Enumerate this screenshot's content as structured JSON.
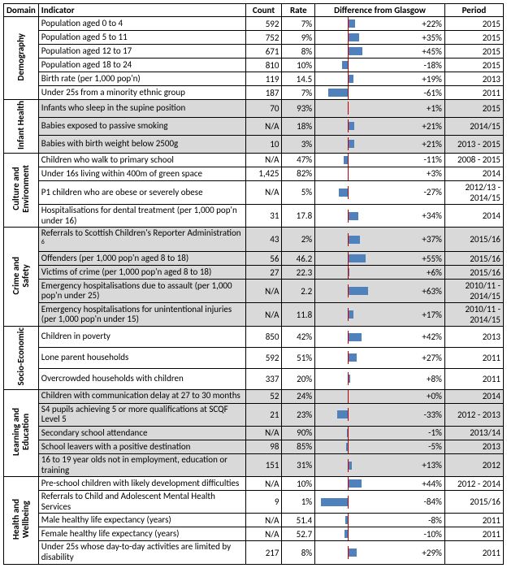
{
  "chart": {
    "min": -100,
    "max": 100,
    "bar_color": "#4f81bd",
    "zero_line_color": "#c00000"
  },
  "headers": {
    "domain": "Domain",
    "indicator": "Indicator",
    "count": "Count",
    "rate": "Rate",
    "diff": "Difference from Glasgow",
    "period": "Period"
  },
  "domains": [
    {
      "name": "Demography",
      "shaded": false,
      "rows": [
        {
          "indicator": "Population aged 0 to 4",
          "count": "592",
          "rate": "7%",
          "pct": 22,
          "pct_label": "+22%",
          "period": "2015"
        },
        {
          "indicator": "Population aged 5 to 11",
          "count": "752",
          "rate": "9%",
          "pct": 35,
          "pct_label": "+35%",
          "period": "2015"
        },
        {
          "indicator": "Population aged 12 to 17",
          "count": "671",
          "rate": "8%",
          "pct": 45,
          "pct_label": "+45%",
          "period": "2015"
        },
        {
          "indicator": "Population aged 18 to 24",
          "count": "810",
          "rate": "10%",
          "pct": -18,
          "pct_label": "-18%",
          "period": "2015"
        },
        {
          "indicator": "Birth rate (per 1,000 pop'n)",
          "count": "119",
          "rate": "14.5",
          "pct": 19,
          "pct_label": "+19%",
          "period": "2013"
        },
        {
          "indicator": "Under 25s from a minority ethnic group",
          "count": "187",
          "rate": "7%",
          "pct": -61,
          "pct_label": "-61%",
          "period": "2011"
        }
      ]
    },
    {
      "name": "Infant Health",
      "shaded": true,
      "rows": [
        {
          "indicator": "Infants who sleep in the supine position",
          "count": "70",
          "rate": "93%",
          "pct": 1,
          "pct_label": "+1%",
          "period": "2015"
        },
        {
          "indicator": "Babies exposed to passive smoking",
          "count": "N/A",
          "rate": "18%",
          "pct": 21,
          "pct_label": "+21%",
          "period": "2014/15"
        },
        {
          "indicator": "Babies with birth weight below 2500g",
          "count": "10",
          "rate": "3%",
          "pct": 21,
          "pct_label": "+21%",
          "period": "2013 - 2015"
        }
      ]
    },
    {
      "name": "Culture and Environment",
      "shaded": false,
      "rows": [
        {
          "indicator": "Children who walk to primary school",
          "count": "N/A",
          "rate": "47%",
          "pct": -11,
          "pct_label": "-11%",
          "period": "2008 - 2015"
        },
        {
          "indicator": "Under 16s living within 400m of green space",
          "count": "1,425",
          "rate": "82%",
          "pct": 3,
          "pct_label": "+3%",
          "period": "2014"
        },
        {
          "indicator": "P1 children who are obese or severely obese",
          "count": "N/A",
          "rate": "5%",
          "pct": -27,
          "pct_label": "-27%",
          "period": "2012/13 - 2014/15"
        },
        {
          "indicator": "Hospitalisations for dental treatment (per 1,000 pop'n under 16)",
          "count": "31",
          "rate": "17.8",
          "pct": 34,
          "pct_label": "+34%",
          "period": "2014"
        }
      ]
    },
    {
      "name": "Crime and Safety",
      "shaded": true,
      "rows": [
        {
          "indicator": "Referrals to Scottish Children's Reporter Administration",
          "sup": "6",
          "count": "43",
          "rate": "2%",
          "pct": 37,
          "pct_label": "+37%",
          "period": "2015/16"
        },
        {
          "indicator": "Offenders (per 1,000 pop'n aged 8 to 18)",
          "count": "56",
          "rate": "46.2",
          "pct": 55,
          "pct_label": "+55%",
          "period": "2015/16"
        },
        {
          "indicator": "Victims of crime (per 1,000 pop'n aged 8 to 18)",
          "count": "27",
          "rate": "22.3",
          "pct": 6,
          "pct_label": "+6%",
          "period": "2015/16"
        },
        {
          "indicator": "Emergency hospitalisations due to assault (per 1,000 pop'n under 25)",
          "count": "N/A",
          "rate": "2.2",
          "pct": 63,
          "pct_label": "+63%",
          "period": "2010/11 - 2014/15"
        },
        {
          "indicator": "Emergency hospitalisations for unintentional injuries (per 1,000 pop'n under 15)",
          "count": "N/A",
          "rate": "11.8",
          "pct": 17,
          "pct_label": "+17%",
          "period": "2010/11 - 2014/15"
        }
      ]
    },
    {
      "name": "Socio-Economic",
      "shaded": false,
      "rows": [
        {
          "indicator": "Children in poverty",
          "count": "850",
          "rate": "42%",
          "pct": 42,
          "pct_label": "+42%",
          "period": "2013"
        },
        {
          "indicator": "Lone parent households",
          "count": "592",
          "rate": "51%",
          "pct": 27,
          "pct_label": "+27%",
          "period": "2011"
        },
        {
          "indicator": "Overcrowded households with children",
          "count": "337",
          "rate": "20%",
          "pct": 8,
          "pct_label": "+8%",
          "period": "2011"
        }
      ]
    },
    {
      "name": "Learning and Education",
      "shaded": true,
      "rows": [
        {
          "indicator": "Children with communication delay at 27 to 30 months",
          "count": "52",
          "rate": "24%",
          "pct": 0,
          "pct_label": "+0%",
          "period": "2014"
        },
        {
          "indicator": "S4 pupils achieving 5 or more qualifications at SCQF Level 5",
          "count": "21",
          "rate": "23%",
          "pct": -33,
          "pct_label": "-33%",
          "period": "2012 - 2013"
        },
        {
          "indicator": "Secondary school attendance",
          "count": "N/A",
          "rate": "90%",
          "pct": -1,
          "pct_label": "-1%",
          "period": "2013/14"
        },
        {
          "indicator": "School leavers with a positive destination",
          "count": "98",
          "rate": "85%",
          "pct": -5,
          "pct_label": "-5%",
          "period": "2013"
        },
        {
          "indicator": "16 to 19 year olds not in employment, education or training",
          "count": "151",
          "rate": "31%",
          "pct": 13,
          "pct_label": "+13%",
          "period": "2012"
        }
      ]
    },
    {
      "name": "Health and Wellbeing",
      "shaded": false,
      "rows": [
        {
          "indicator": "Pre-school children with likely development difficulties",
          "count": "N/A",
          "rate": "10%",
          "pct": 44,
          "pct_label": "+44%",
          "period": "2012 - 2014"
        },
        {
          "indicator": "Referrals to Child and Adolescent Mental Health Services",
          "count": "9",
          "rate": "1%",
          "pct": -84,
          "pct_label": "-84%",
          "period": "2015/16"
        },
        {
          "indicator": "Male healthy life expectancy (years)",
          "count": "N/A",
          "rate": "51.4",
          "pct": -8,
          "pct_label": "-8%",
          "period": "2011"
        },
        {
          "indicator": "Female healthy life expectancy (years)",
          "count": "N/A",
          "rate": "52.7",
          "pct": -10,
          "pct_label": "-10%",
          "period": "2011"
        },
        {
          "indicator": "Under 25s whose day-to-day activities are limited by disability",
          "count": "217",
          "rate": "8%",
          "pct": 29,
          "pct_label": "+29%",
          "period": "2011"
        }
      ]
    }
  ]
}
